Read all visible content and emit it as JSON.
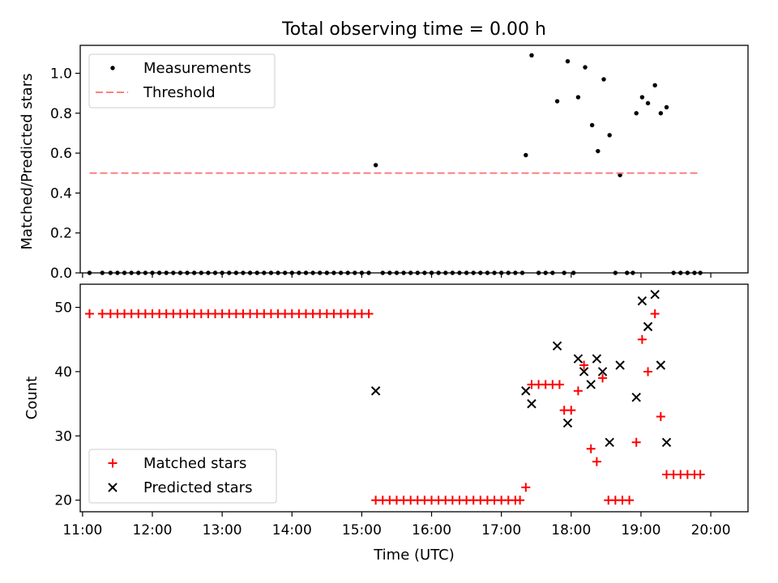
{
  "chart_data": {
    "title": "Total observing time = 0.00 h",
    "xlabel": "Time (UTC)",
    "x_tick_labels": [
      "11:00",
      "12:00",
      "13:00",
      "14:00",
      "15:00",
      "16:00",
      "17:00",
      "18:00",
      "19:00",
      "20:00"
    ],
    "xlim": [
      "10:58",
      "20:32"
    ],
    "panels": [
      {
        "type": "scatter",
        "ylabel": "Matched/Predicted stars",
        "ylim": [
          0,
          1.14
        ],
        "y_tick_labels": [
          "0.0",
          "0.2",
          "0.4",
          "0.6",
          "0.8",
          "1.0"
        ],
        "legend_position": "top-left",
        "series": [
          {
            "name": "Measurements",
            "marker": "dot",
            "color": "#000000",
            "points": [
              [
                "11:06",
                0
              ],
              [
                "11:17",
                0
              ],
              [
                "11:24",
                0
              ],
              [
                "11:30",
                0
              ],
              [
                "11:36",
                0
              ],
              [
                "11:42",
                0
              ],
              [
                "11:48",
                0
              ],
              [
                "11:54",
                0
              ],
              [
                "12:00",
                0
              ],
              [
                "12:06",
                0
              ],
              [
                "12:12",
                0
              ],
              [
                "12:18",
                0
              ],
              [
                "12:24",
                0
              ],
              [
                "12:30",
                0
              ],
              [
                "12:36",
                0
              ],
              [
                "12:42",
                0
              ],
              [
                "12:48",
                0
              ],
              [
                "12:54",
                0
              ],
              [
                "13:00",
                0
              ],
              [
                "13:06",
                0
              ],
              [
                "13:12",
                0
              ],
              [
                "13:18",
                0
              ],
              [
                "13:24",
                0
              ],
              [
                "13:30",
                0
              ],
              [
                "13:36",
                0
              ],
              [
                "13:42",
                0
              ],
              [
                "13:48",
                0
              ],
              [
                "13:54",
                0
              ],
              [
                "14:00",
                0
              ],
              [
                "14:06",
                0
              ],
              [
                "14:12",
                0
              ],
              [
                "14:18",
                0
              ],
              [
                "14:24",
                0
              ],
              [
                "14:30",
                0
              ],
              [
                "14:36",
                0
              ],
              [
                "14:42",
                0
              ],
              [
                "14:48",
                0
              ],
              [
                "14:54",
                0
              ],
              [
                "15:00",
                0
              ],
              [
                "15:06",
                0
              ],
              [
                "15:12",
                0.54
              ],
              [
                "15:18",
                0
              ],
              [
                "15:24",
                0
              ],
              [
                "15:30",
                0
              ],
              [
                "15:36",
                0
              ],
              [
                "15:42",
                0
              ],
              [
                "15:48",
                0
              ],
              [
                "15:54",
                0
              ],
              [
                "16:00",
                0
              ],
              [
                "16:06",
                0
              ],
              [
                "16:12",
                0
              ],
              [
                "16:18",
                0
              ],
              [
                "16:24",
                0
              ],
              [
                "16:30",
                0
              ],
              [
                "16:36",
                0
              ],
              [
                "16:42",
                0
              ],
              [
                "16:48",
                0
              ],
              [
                "16:54",
                0
              ],
              [
                "17:00",
                0
              ],
              [
                "17:06",
                0
              ],
              [
                "17:12",
                0
              ],
              [
                "17:18",
                0
              ],
              [
                "17:21",
                0.59
              ],
              [
                "17:26",
                1.09
              ],
              [
                "17:32",
                0
              ],
              [
                "17:38",
                0
              ],
              [
                "17:44",
                0
              ],
              [
                "17:48",
                0.86
              ],
              [
                "17:54",
                0
              ],
              [
                "17:57",
                1.06
              ],
              [
                "18:02",
                0
              ],
              [
                "18:06",
                0.88
              ],
              [
                "18:12",
                1.03
              ],
              [
                "18:18",
                0.74
              ],
              [
                "18:23",
                0.61
              ],
              [
                "18:28",
                0.97
              ],
              [
                "18:33",
                0.69
              ],
              [
                "18:38",
                0
              ],
              [
                "18:42",
                0.49
              ],
              [
                "18:48",
                0
              ],
              [
                "18:53",
                0
              ],
              [
                "18:56",
                0.8
              ],
              [
                "19:01",
                0.88
              ],
              [
                "19:06",
                0.85
              ],
              [
                "19:12",
                0.94
              ],
              [
                "19:17",
                0.8
              ],
              [
                "19:22",
                0.83
              ],
              [
                "19:28",
                0
              ],
              [
                "19:34",
                0
              ],
              [
                "19:40",
                0
              ],
              [
                "19:46",
                0
              ],
              [
                "19:51",
                0
              ]
            ]
          },
          {
            "name": "Threshold",
            "kind": "line",
            "dash": true,
            "color": "#ff7f7f",
            "x": [
              "11:06",
              "19:50"
            ],
            "y": 0.5
          }
        ]
      },
      {
        "type": "scatter",
        "ylabel": "Count",
        "ylim": [
          18.2,
          53.6
        ],
        "y_tick_labels": [
          "20",
          "30",
          "40",
          "50"
        ],
        "legend_position": "bottom-left",
        "series": [
          {
            "name": "Matched stars",
            "marker": "plus",
            "color": "#ff0000",
            "points": [
              [
                "11:06",
                49
              ],
              [
                "11:17",
                49
              ],
              [
                "11:24",
                49
              ],
              [
                "11:30",
                49
              ],
              [
                "11:36",
                49
              ],
              [
                "11:42",
                49
              ],
              [
                "11:48",
                49
              ],
              [
                "11:54",
                49
              ],
              [
                "12:00",
                49
              ],
              [
                "12:06",
                49
              ],
              [
                "12:12",
                49
              ],
              [
                "12:18",
                49
              ],
              [
                "12:24",
                49
              ],
              [
                "12:30",
                49
              ],
              [
                "12:36",
                49
              ],
              [
                "12:42",
                49
              ],
              [
                "12:48",
                49
              ],
              [
                "12:54",
                49
              ],
              [
                "13:00",
                49
              ],
              [
                "13:06",
                49
              ],
              [
                "13:12",
                49
              ],
              [
                "13:18",
                49
              ],
              [
                "13:24",
                49
              ],
              [
                "13:30",
                49
              ],
              [
                "13:36",
                49
              ],
              [
                "13:42",
                49
              ],
              [
                "13:48",
                49
              ],
              [
                "13:54",
                49
              ],
              [
                "14:00",
                49
              ],
              [
                "14:06",
                49
              ],
              [
                "14:12",
                49
              ],
              [
                "14:18",
                49
              ],
              [
                "14:24",
                49
              ],
              [
                "14:30",
                49
              ],
              [
                "14:36",
                49
              ],
              [
                "14:42",
                49
              ],
              [
                "14:48",
                49
              ],
              [
                "14:54",
                49
              ],
              [
                "15:00",
                49
              ],
              [
                "15:06",
                49
              ],
              [
                "15:12",
                20
              ],
              [
                "15:18",
                20
              ],
              [
                "15:24",
                20
              ],
              [
                "15:30",
                20
              ],
              [
                "15:36",
                20
              ],
              [
                "15:42",
                20
              ],
              [
                "15:48",
                20
              ],
              [
                "15:54",
                20
              ],
              [
                "16:00",
                20
              ],
              [
                "16:06",
                20
              ],
              [
                "16:12",
                20
              ],
              [
                "16:18",
                20
              ],
              [
                "16:24",
                20
              ],
              [
                "16:30",
                20
              ],
              [
                "16:36",
                20
              ],
              [
                "16:42",
                20
              ],
              [
                "16:48",
                20
              ],
              [
                "16:54",
                20
              ],
              [
                "17:00",
                20
              ],
              [
                "17:06",
                20
              ],
              [
                "17:12",
                20
              ],
              [
                "17:16",
                20
              ],
              [
                "17:21",
                22
              ],
              [
                "17:26",
                38
              ],
              [
                "17:32",
                38
              ],
              [
                "17:38",
                38
              ],
              [
                "17:44",
                38
              ],
              [
                "17:50",
                38
              ],
              [
                "17:54",
                34
              ],
              [
                "18:00",
                34
              ],
              [
                "18:06",
                37
              ],
              [
                "18:11",
                41
              ],
              [
                "18:17",
                28
              ],
              [
                "18:22",
                26
              ],
              [
                "18:27",
                39
              ],
              [
                "18:32",
                20
              ],
              [
                "18:38",
                20
              ],
              [
                "18:44",
                20
              ],
              [
                "18:50",
                20
              ],
              [
                "18:56",
                29
              ],
              [
                "19:01",
                45
              ],
              [
                "19:06",
                40
              ],
              [
                "19:12",
                49
              ],
              [
                "19:17",
                33
              ],
              [
                "19:22",
                24
              ],
              [
                "19:28",
                24
              ],
              [
                "19:34",
                24
              ],
              [
                "19:40",
                24
              ],
              [
                "19:46",
                24
              ],
              [
                "19:51",
                24
              ]
            ]
          },
          {
            "name": "Predicted stars",
            "marker": "x",
            "color": "#000000",
            "points": [
              [
                "15:12",
                37
              ],
              [
                "17:21",
                37
              ],
              [
                "17:26",
                35
              ],
              [
                "17:48",
                44
              ],
              [
                "17:57",
                32
              ],
              [
                "18:06",
                42
              ],
              [
                "18:11",
                40
              ],
              [
                "18:17",
                38
              ],
              [
                "18:22",
                42
              ],
              [
                "18:27",
                40
              ],
              [
                "18:33",
                29
              ],
              [
                "18:42",
                41
              ],
              [
                "18:56",
                36
              ],
              [
                "19:01",
                51
              ],
              [
                "19:06",
                47
              ],
              [
                "19:12",
                52
              ],
              [
                "19:17",
                41
              ],
              [
                "19:22",
                29
              ]
            ]
          }
        ]
      }
    ]
  }
}
